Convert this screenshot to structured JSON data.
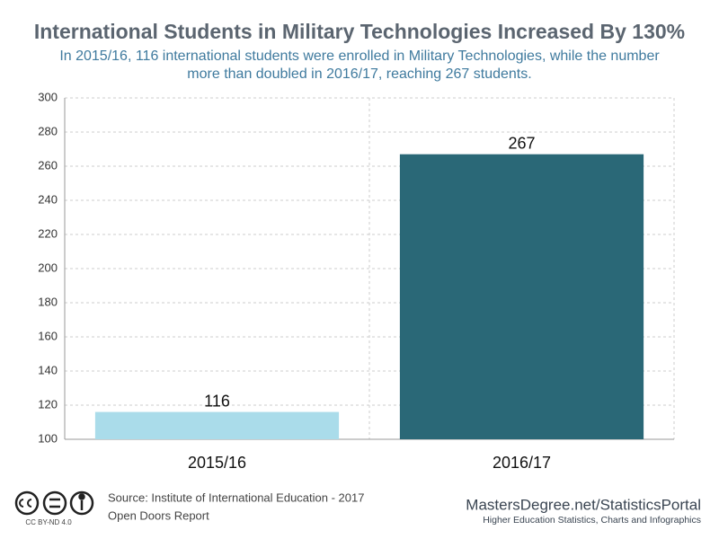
{
  "chart_data": {
    "type": "bar",
    "title": "International Students in Military Technologies Increased By 130%",
    "subtitle": [
      "In 2015/16, 116 international students were enrolled in Military Technologies, while the number",
      "more than doubled in 2016/17, reaching 267 students."
    ],
    "categories": [
      "2015/16",
      "2016/17"
    ],
    "values": [
      116,
      267
    ],
    "colors": [
      "#aadcea",
      "#2a6877"
    ],
    "ylim": [
      100,
      300
    ],
    "yticks": [
      100,
      120,
      140,
      160,
      180,
      200,
      220,
      240,
      260,
      280,
      300
    ],
    "grid": true
  },
  "footer": {
    "source": [
      "Source: Institute of International Education - 2017",
      "Open Doors Report"
    ],
    "license": "CC BY-ND 4.0",
    "brand": "MastersDegree.net/StatisticsPortal",
    "tagline": "Higher Education Statistics, Charts and Infographics"
  }
}
